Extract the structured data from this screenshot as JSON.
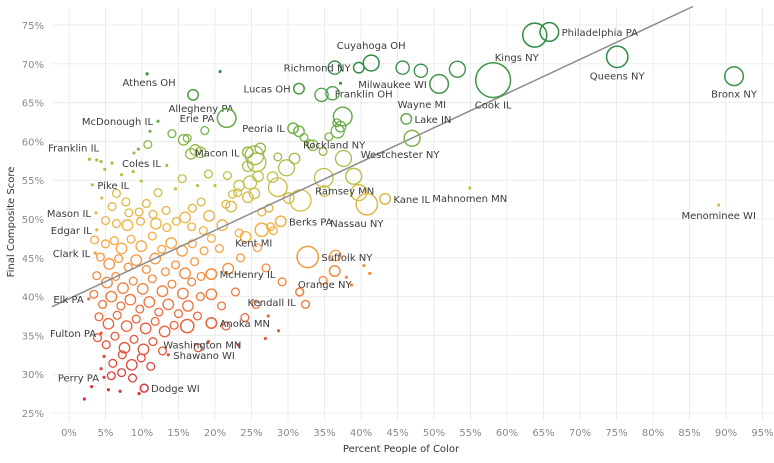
{
  "chart_data": {
    "type": "scatter",
    "title": "",
    "xlabel": "Percent People of Color",
    "ylabel": "Final Composite Score",
    "xlim": [
      -2.3,
      96.5
    ],
    "ylim": [
      24,
      76.5
    ],
    "x_ticks": [
      0,
      5,
      10,
      15,
      20,
      25,
      30,
      35,
      40,
      45,
      50,
      55,
      60,
      65,
      70,
      75,
      80,
      85,
      90,
      95
    ],
    "x_tick_labels": [
      "0%",
      "5%",
      "10%",
      "15%",
      "20%",
      "25%",
      "30%",
      "35%",
      "40%",
      "45%",
      "50%",
      "55%",
      "60%",
      "65%",
      "70%",
      "75%",
      "80%",
      "85%",
      "90%",
      "95%"
    ],
    "y_ticks": [
      25,
      30,
      35,
      40,
      45,
      50,
      55,
      60,
      65,
      70,
      75
    ],
    "y_tick_labels": [
      "25%",
      "30%",
      "35%",
      "40%",
      "45%",
      "50%",
      "55%",
      "60%",
      "65%",
      "70%",
      "75%"
    ],
    "grid": true,
    "color_scale": {
      "encoding": "Final Composite Score",
      "stops": [
        {
          "value": 27,
          "color": "#d7303b"
        },
        {
          "value": 40,
          "color": "#f0773a"
        },
        {
          "value": 48,
          "color": "#f9ad42"
        },
        {
          "value": 55,
          "color": "#c3c246"
        },
        {
          "value": 62,
          "color": "#6db14a"
        },
        {
          "value": 70,
          "color": "#2e8b45"
        }
      ]
    },
    "size_encoding": "County population (circle area)",
    "trend_line": {
      "x": [
        -2.3,
        85.5
      ],
      "y": [
        38.7,
        77.4
      ],
      "color": "#8c8c8c"
    },
    "labeled_points": [
      {
        "name": "Athens OH",
        "x": 10.7,
        "y": 68.7,
        "size": 1,
        "label_pos": "below"
      },
      {
        "name": "Lucas OH",
        "x": 31.5,
        "y": 66.8,
        "size": 3,
        "label_pos": "left"
      },
      {
        "name": "Richmond NY",
        "x": 39.7,
        "y": 69.5,
        "size": 3,
        "label_pos": "left"
      },
      {
        "name": "Cuyahoga OH",
        "x": 41.4,
        "y": 70.1,
        "size": 5,
        "label_pos": "above"
      },
      {
        "name": "Milwaukee WI",
        "x": 50.7,
        "y": 67.4,
        "size": 6,
        "label_pos": "left"
      },
      {
        "name": "Wayne MI",
        "x": 50.7,
        "y": 67.4,
        "size": 0,
        "label_pos": "below-left"
      },
      {
        "name": "Kings NY",
        "x": 63.8,
        "y": 73.7,
        "size": 8,
        "label_pos": "below-left"
      },
      {
        "name": "Philadelphia PA",
        "x": 65.8,
        "y": 74.1,
        "size": 6,
        "label_pos": "right"
      },
      {
        "name": "Queens NY",
        "x": 75.1,
        "y": 70.9,
        "size": 7,
        "label_pos": "below"
      },
      {
        "name": "Bronx NY",
        "x": 91.1,
        "y": 68.4,
        "size": 6,
        "label_pos": "below"
      },
      {
        "name": "Cook IL",
        "x": 58.1,
        "y": 67.9,
        "size": 12,
        "label_pos": "below"
      },
      {
        "name": "Franklin OH",
        "x": 37.5,
        "y": 63.2,
        "size": 6,
        "label_pos": "above-right"
      },
      {
        "name": "Lake IN",
        "x": 46.2,
        "y": 62.9,
        "size": 3,
        "label_pos": "right"
      },
      {
        "name": "Westchester NY",
        "x": 47.0,
        "y": 60.4,
        "size": 5,
        "label_pos": "below"
      },
      {
        "name": "Rockland NY",
        "x": 31.5,
        "y": 61.3,
        "size": 3,
        "label_pos": "below-right"
      },
      {
        "name": "Peoria IL",
        "x": 30.7,
        "y": 61.7,
        "size": 3,
        "label_pos": "left"
      },
      {
        "name": "Allegheny PA",
        "x": 17.0,
        "y": 66.0,
        "size": 3,
        "label_pos": "below"
      },
      {
        "name": "Erie PA",
        "x": 21.6,
        "y": 63.0,
        "size": 6,
        "label_pos": "left"
      },
      {
        "name": "McDonough IL",
        "x": 12.2,
        "y": 62.6,
        "size": 1,
        "label_pos": "left"
      },
      {
        "name": "Macon IL",
        "x": 24.5,
        "y": 58.6,
        "size": 3,
        "label_pos": "left"
      },
      {
        "name": "Coles IL",
        "x": 8.9,
        "y": 58.5,
        "size": 1,
        "label_pos": "below-right"
      },
      {
        "name": "Franklin IL",
        "x": 4.4,
        "y": 57.4,
        "size": 1,
        "label_pos": "above-left"
      },
      {
        "name": "Pike IL",
        "x": 3.2,
        "y": 54.4,
        "size": 1,
        "label_pos": "right"
      },
      {
        "name": "Ramsey MN",
        "x": 39.0,
        "y": 55.5,
        "size": 5,
        "label_pos": "below"
      },
      {
        "name": "Kane IL",
        "x": 43.3,
        "y": 52.6,
        "size": 3,
        "label_pos": "right"
      },
      {
        "name": "Nassau NY",
        "x": 40.8,
        "y": 51.9,
        "size": 7,
        "label_pos": "below"
      },
      {
        "name": "Mahnomen MN",
        "x": 54.9,
        "y": 54.0,
        "size": 1,
        "label_pos": "below"
      },
      {
        "name": "Menominee WI",
        "x": 89.0,
        "y": 51.8,
        "size": 1,
        "label_pos": "below"
      },
      {
        "name": "Berks PA",
        "x": 29.0,
        "y": 49.7,
        "size": 3,
        "label_pos": "right"
      },
      {
        "name": "Kent MI",
        "x": 26.4,
        "y": 48.6,
        "size": 4,
        "label_pos": "below"
      },
      {
        "name": "Suffolk NY",
        "x": 32.7,
        "y": 45.1,
        "size": 7,
        "label_pos": "right"
      },
      {
        "name": "Orange NY",
        "x": 36.4,
        "y": 43.3,
        "size": 3,
        "label_pos": "below"
      },
      {
        "name": "McHenry IL",
        "x": 19.5,
        "y": 42.9,
        "size": 3,
        "label_pos": "right"
      },
      {
        "name": "Kendall IL",
        "x": 31.6,
        "y": 40.6,
        "size": 2,
        "label_pos": "below"
      },
      {
        "name": "Anoka MN",
        "x": 19.5,
        "y": 36.6,
        "size": 3,
        "label_pos": "right"
      },
      {
        "name": "Washington MN",
        "x": 16.2,
        "y": 36.2,
        "size": 4,
        "label_pos": "below-right"
      },
      {
        "name": "Shawano WI",
        "x": 13.6,
        "y": 32.5,
        "size": 1,
        "label_pos": "right"
      },
      {
        "name": "Dodge WI",
        "x": 10.3,
        "y": 28.2,
        "size": 2,
        "label_pos": "right"
      },
      {
        "name": "Perry PA",
        "x": 4.8,
        "y": 29.6,
        "size": 1,
        "label_pos": "left"
      },
      {
        "name": "Fulton PA",
        "x": 4.4,
        "y": 35.3,
        "size": 1,
        "label_pos": "left"
      },
      {
        "name": "Elk PA",
        "x": 2.7,
        "y": 39.7,
        "size": 1,
        "label_pos": "left"
      },
      {
        "name": "Clark IL",
        "x": 3.6,
        "y": 45.6,
        "size": 1,
        "label_pos": "left"
      },
      {
        "name": "Edgar IL",
        "x": 3.8,
        "y": 48.6,
        "size": 1,
        "label_pos": "left"
      },
      {
        "name": "Mason IL",
        "x": 3.7,
        "y": 50.8,
        "size": 1,
        "label_pos": "left"
      }
    ],
    "unlabeled_points": [
      [
        20.7,
        69.0,
        1
      ],
      [
        36.4,
        69.5,
        4
      ],
      [
        45.7,
        69.5,
        4
      ],
      [
        48.2,
        69.1,
        4
      ],
      [
        53.2,
        69.3,
        5
      ],
      [
        34.6,
        66.0,
        4
      ],
      [
        36.1,
        66.2,
        4
      ],
      [
        37.2,
        67.5,
        1
      ],
      [
        18.6,
        61.4,
        2
      ],
      [
        16.2,
        60.4,
        2
      ],
      [
        14.1,
        61.0,
        2
      ],
      [
        15.7,
        60.2,
        3
      ],
      [
        11.1,
        61.3,
        1
      ],
      [
        10.8,
        59.6,
        2
      ],
      [
        9.5,
        59.0,
        1
      ],
      [
        17.3,
        58.9,
        3
      ],
      [
        16.7,
        58.4,
        3
      ],
      [
        18.0,
        58.6,
        3
      ],
      [
        25.4,
        58.2,
        6
      ],
      [
        25.7,
        57.3,
        6
      ],
      [
        26.2,
        59.1,
        3
      ],
      [
        24.5,
        56.8,
        3
      ],
      [
        29.8,
        56.6,
        5
      ],
      [
        30.9,
        57.8,
        3
      ],
      [
        28.6,
        58.0,
        2
      ],
      [
        32.2,
        60.5,
        2
      ],
      [
        33.4,
        59.5,
        3
      ],
      [
        36.8,
        61.3,
        4
      ],
      [
        37.2,
        61.9,
        3
      ],
      [
        36.7,
        62.4,
        2
      ],
      [
        35.6,
        60.6,
        2
      ],
      [
        21.7,
        55.6,
        2
      ],
      [
        23.3,
        54.3,
        3
      ],
      [
        23.1,
        53.4,
        2
      ],
      [
        24.8,
        54.7,
        4
      ],
      [
        25.9,
        55.5,
        3
      ],
      [
        25.4,
        53.3,
        3
      ],
      [
        27.9,
        55.4,
        3
      ],
      [
        28.6,
        54.1,
        6
      ],
      [
        24.5,
        52.8,
        3
      ],
      [
        22.2,
        51.6,
        3
      ],
      [
        20.0,
        54.3,
        1
      ],
      [
        19.1,
        55.8,
        2
      ],
      [
        34.9,
        55.3,
        6
      ],
      [
        35.0,
        53.6,
        3
      ],
      [
        39.7,
        53.4,
        5
      ],
      [
        37.6,
        57.8,
        5
      ],
      [
        34.8,
        58.7,
        2
      ],
      [
        33.0,
        59.7,
        2
      ],
      [
        31.7,
        52.4,
        7
      ],
      [
        30.1,
        52.7,
        3
      ],
      [
        27.4,
        51.4,
        2
      ],
      [
        26.4,
        50.9,
        2
      ],
      [
        22.4,
        53.2,
        2
      ],
      [
        21.5,
        51.9,
        2
      ],
      [
        17.6,
        54.3,
        1
      ],
      [
        14.6,
        53.9,
        1
      ],
      [
        12.2,
        53.4,
        2
      ],
      [
        10.6,
        52.0,
        2
      ],
      [
        9.6,
        50.9,
        2
      ],
      [
        8.8,
        56.1,
        1
      ],
      [
        5.9,
        57.2,
        1
      ],
      [
        3.8,
        57.6,
        1
      ],
      [
        2.8,
        57.7,
        1
      ],
      [
        4.9,
        56.4,
        1
      ],
      [
        7.2,
        55.7,
        1
      ],
      [
        9.9,
        54.9,
        1
      ],
      [
        13.4,
        56.9,
        1
      ],
      [
        15.5,
        55.2,
        2
      ],
      [
        18.1,
        52.2,
        2
      ],
      [
        6.5,
        53.3,
        2
      ],
      [
        7.8,
        52.2,
        2
      ],
      [
        4.5,
        52.7,
        1
      ],
      [
        5.9,
        51.6,
        2
      ],
      [
        8.2,
        50.8,
        2
      ],
      [
        11.5,
        50.6,
        2
      ],
      [
        13.3,
        51.1,
        2
      ],
      [
        15.9,
        50.2,
        3
      ],
      [
        16.9,
        51.4,
        2
      ],
      [
        19.2,
        50.4,
        3
      ],
      [
        21.0,
        49.2,
        3
      ],
      [
        23.3,
        48.2,
        2
      ],
      [
        20.6,
        46.2,
        2
      ],
      [
        24.2,
        47.7,
        3
      ],
      [
        27.6,
        49.0,
        2
      ],
      [
        28.0,
        48.5,
        2
      ],
      [
        25.8,
        46.3,
        2
      ],
      [
        23.5,
        45.0,
        2
      ],
      [
        21.8,
        43.6,
        3
      ],
      [
        19.5,
        40.3,
        3
      ],
      [
        27.0,
        43.7,
        2
      ],
      [
        29.2,
        41.9,
        2
      ],
      [
        32.4,
        39.0,
        2
      ],
      [
        34.8,
        42.1,
        2
      ],
      [
        36.5,
        45.3,
        3
      ],
      [
        38.7,
        41.5,
        1
      ],
      [
        40.4,
        44.0,
        1
      ],
      [
        38.0,
        42.5,
        1
      ],
      [
        5.0,
        49.8,
        2
      ],
      [
        6.5,
        49.4,
        2
      ],
      [
        8.0,
        49.2,
        3
      ],
      [
        9.8,
        49.7,
        2
      ],
      [
        11.9,
        49.4,
        3
      ],
      [
        13.4,
        48.9,
        2
      ],
      [
        14.7,
        49.7,
        2
      ],
      [
        16.8,
        49.0,
        2
      ],
      [
        18.4,
        48.5,
        2
      ],
      [
        3.5,
        47.3,
        2
      ],
      [
        5.0,
        46.8,
        2
      ],
      [
        6.2,
        47.2,
        2
      ],
      [
        7.2,
        46.2,
        3
      ],
      [
        8.5,
        47.4,
        2
      ],
      [
        9.9,
        46.5,
        3
      ],
      [
        11.4,
        47.8,
        2
      ],
      [
        12.7,
        46.1,
        2
      ],
      [
        14.0,
        46.9,
        3
      ],
      [
        15.5,
        45.9,
        3
      ],
      [
        16.9,
        46.8,
        2
      ],
      [
        18.5,
        45.9,
        2
      ],
      [
        19.5,
        47.5,
        2
      ],
      [
        4.3,
        45.1,
        2
      ],
      [
        5.5,
        44.2,
        3
      ],
      [
        6.8,
        44.9,
        2
      ],
      [
        8.1,
        43.8,
        2
      ],
      [
        9.2,
        44.7,
        3
      ],
      [
        10.6,
        43.5,
        2
      ],
      [
        11.8,
        44.9,
        3
      ],
      [
        13.2,
        43.2,
        2
      ],
      [
        14.6,
        44.1,
        2
      ],
      [
        15.9,
        43.0,
        3
      ],
      [
        17.2,
        44.5,
        2
      ],
      [
        18.1,
        42.6,
        2
      ],
      [
        3.8,
        42.7,
        2
      ],
      [
        5.2,
        41.8,
        3
      ],
      [
        6.4,
        42.6,
        2
      ],
      [
        7.4,
        41.1,
        3
      ],
      [
        8.8,
        42.0,
        2
      ],
      [
        10.1,
        41.0,
        3
      ],
      [
        11.4,
        42.3,
        2
      ],
      [
        12.8,
        40.7,
        3
      ],
      [
        14.1,
        41.6,
        2
      ],
      [
        15.6,
        40.4,
        3
      ],
      [
        16.8,
        41.9,
        2
      ],
      [
        18.0,
        40.0,
        2
      ],
      [
        3.4,
        40.3,
        2
      ],
      [
        4.6,
        39.0,
        2
      ],
      [
        5.8,
        40.0,
        3
      ],
      [
        7.1,
        38.8,
        2
      ],
      [
        8.4,
        39.6,
        3
      ],
      [
        9.7,
        38.4,
        2
      ],
      [
        11.0,
        39.3,
        3
      ],
      [
        12.3,
        38.0,
        2
      ],
      [
        13.6,
        39.0,
        3
      ],
      [
        15.0,
        37.8,
        2
      ],
      [
        16.3,
        38.8,
        3
      ],
      [
        17.6,
        37.5,
        2
      ],
      [
        4.1,
        37.4,
        2
      ],
      [
        5.4,
        36.5,
        3
      ],
      [
        6.6,
        37.6,
        2
      ],
      [
        7.9,
        36.2,
        3
      ],
      [
        9.2,
        37.1,
        2
      ],
      [
        10.5,
        35.9,
        3
      ],
      [
        11.8,
        36.8,
        2
      ],
      [
        13.1,
        35.5,
        3
      ],
      [
        14.4,
        36.3,
        2
      ],
      [
        3.9,
        34.7,
        2
      ],
      [
        5.1,
        33.8,
        2
      ],
      [
        6.3,
        34.9,
        2
      ],
      [
        7.6,
        33.4,
        3
      ],
      [
        8.9,
        34.5,
        2
      ],
      [
        10.2,
        33.2,
        3
      ],
      [
        11.5,
        34.2,
        2
      ],
      [
        12.8,
        33.0,
        2
      ],
      [
        4.8,
        32.3,
        1
      ],
      [
        6.0,
        31.4,
        2
      ],
      [
        7.3,
        32.5,
        2
      ],
      [
        8.6,
        31.2,
        3
      ],
      [
        9.9,
        32.1,
        2
      ],
      [
        11.2,
        31.0,
        2
      ],
      [
        4.4,
        30.7,
        1
      ],
      [
        5.8,
        29.8,
        2
      ],
      [
        7.2,
        30.2,
        2
      ],
      [
        8.7,
        29.5,
        2
      ],
      [
        3.1,
        28.4,
        1
      ],
      [
        5.4,
        28.0,
        1
      ],
      [
        7.0,
        27.8,
        1
      ],
      [
        9.6,
        27.5,
        1
      ],
      [
        2.1,
        26.8,
        1
      ],
      [
        20.9,
        38.8,
        2
      ],
      [
        22.8,
        40.6,
        2
      ],
      [
        25.6,
        39.0,
        2
      ],
      [
        27.3,
        37.5,
        1
      ],
      [
        28.7,
        35.6,
        1
      ],
      [
        24.1,
        37.3,
        2
      ],
      [
        26.9,
        34.6,
        1
      ],
      [
        21.5,
        36.2,
        2
      ],
      [
        19.1,
        34.2,
        1
      ],
      [
        17.7,
        33.4,
        2
      ],
      [
        23.2,
        33.8,
        1
      ],
      [
        41.2,
        43.0,
        1
      ]
    ]
  }
}
